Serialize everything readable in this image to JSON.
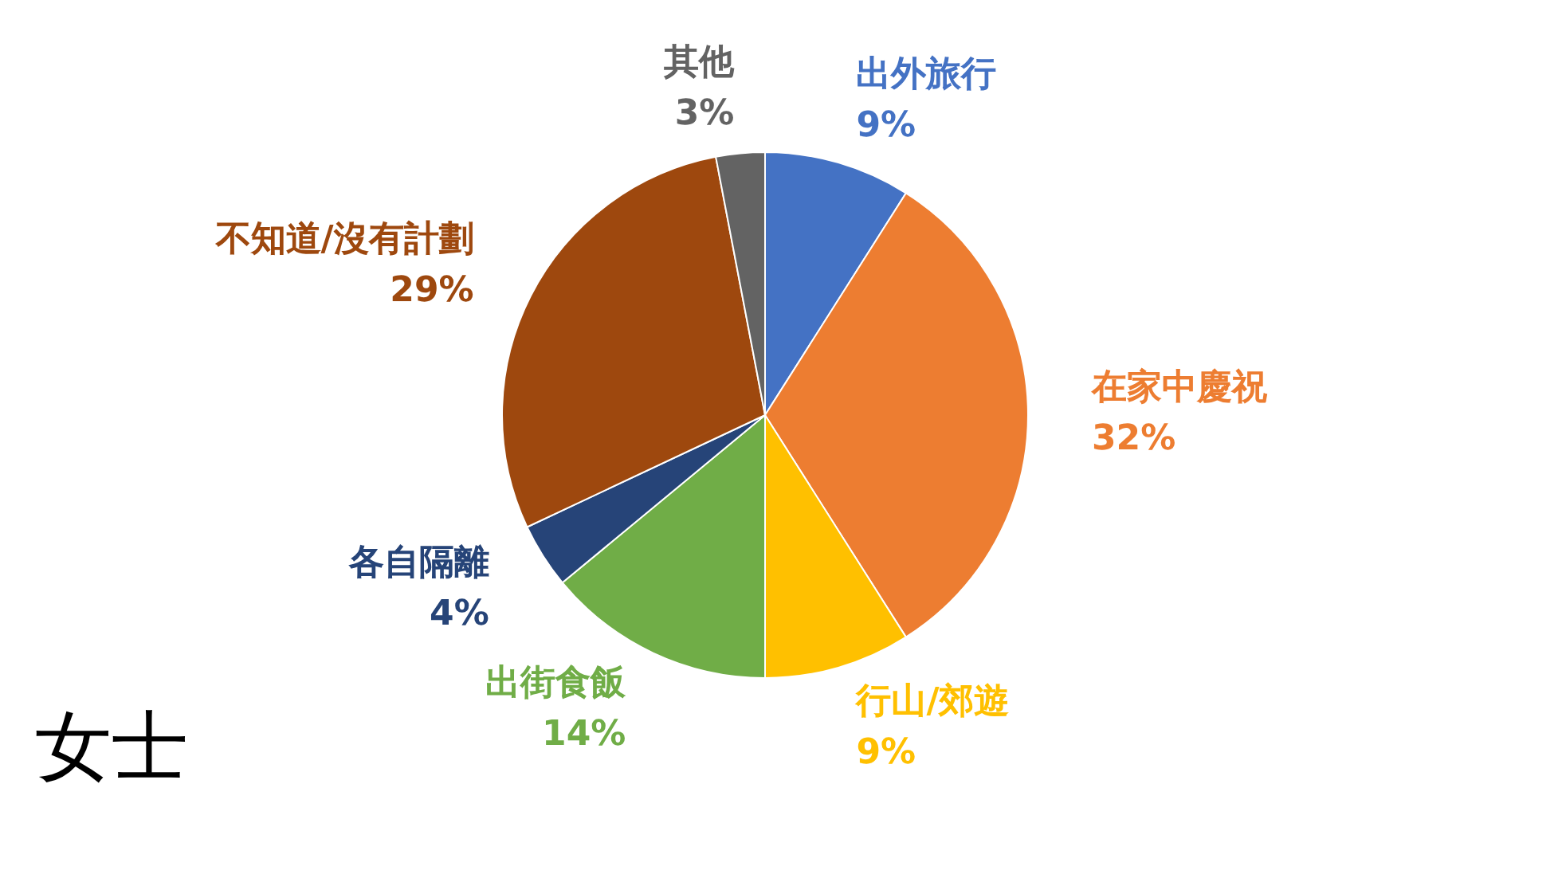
{
  "chart_data": {
    "type": "pie",
    "title": "女士",
    "categories": [
      "出外旅行",
      "在家中慶祝",
      "行山/郊遊",
      "出街食飯",
      "各自隔離",
      "不知道/沒有計劃",
      "其他"
    ],
    "values": [
      9,
      32,
      9,
      14,
      4,
      29,
      3
    ],
    "value_labels": [
      "9%",
      "32%",
      "9%",
      "14%",
      "4%",
      "29%",
      "3%"
    ],
    "colors": [
      "#4472c4",
      "#ed7d31",
      "#ffc000",
      "#70ad47",
      "#264478",
      "#9e480e",
      "#636363"
    ],
    "legend": false
  }
}
